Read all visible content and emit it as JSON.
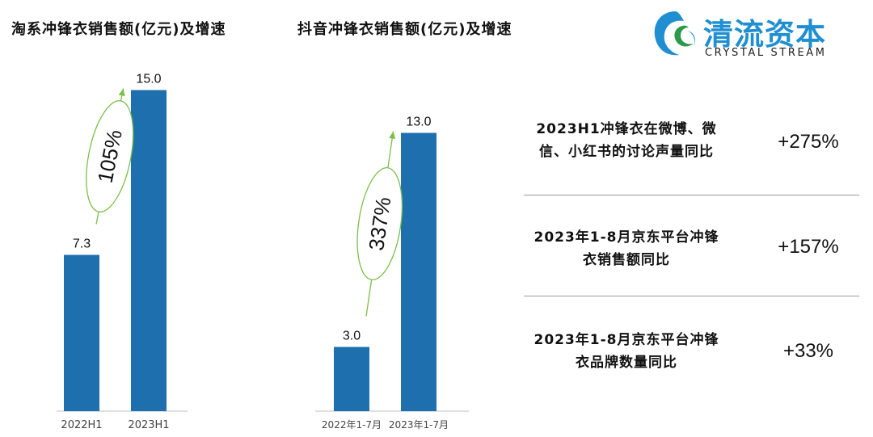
{
  "logo": {
    "name_cn": "清流资本",
    "name_en": "CRYSTAL STREAM",
    "colors": {
      "primary": "#1f8fd1",
      "secondary": "#2a9a4a"
    }
  },
  "colors": {
    "bar": "#1e6fae",
    "growth_ellipse": "#7cbf4a",
    "axis": "#bfbfbf",
    "divider": "#9a9a9a"
  },
  "chart_data": [
    {
      "type": "bar",
      "title": "淘系冲锋衣销售额(亿元)及增速",
      "categories": [
        "2022H1",
        "2023H1"
      ],
      "values": [
        7.3,
        15.0
      ],
      "value_labels": [
        "7.3",
        "15.0"
      ],
      "growth_label": "105%",
      "ylim": [
        0,
        16
      ]
    },
    {
      "type": "bar",
      "title": "抖音冲锋衣销售额(亿元)及增速",
      "categories": [
        "2022年1-7月",
        "2023年1-7月"
      ],
      "values": [
        3.0,
        13.0
      ],
      "value_labels": [
        "3.0",
        "13.0"
      ],
      "growth_label": "337%",
      "ylim": [
        0,
        16
      ]
    }
  ],
  "stats": [
    {
      "label_line1": "2023H1冲锋衣在微博、微",
      "label_line2": "信、小红书的讨论声量同比",
      "value": "+275%"
    },
    {
      "label_line1": "2023年1-8月京东平台冲锋",
      "label_line2": "衣销售额同比",
      "value": "+157%"
    },
    {
      "label_line1": "2023年1-8月京东平台冲锋",
      "label_line2": "衣品牌数量同比",
      "value": "+33%"
    }
  ]
}
